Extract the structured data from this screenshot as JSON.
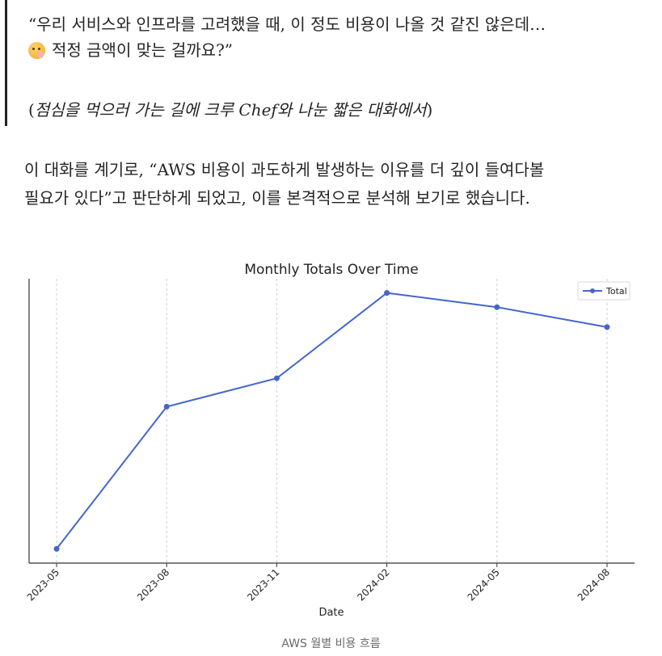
{
  "quote": {
    "line1": "“우리 서비스와 인프라를 고려했을 때, 이 정도 비용이 나올 것 같진 않은데…",
    "emoji": "thinking-face-icon",
    "line2": "적정 금액이 맞는 걸까요?”",
    "note_open": "(",
    "note_text": "점심을 먹으러 가는 길에 크루 Chef와 나눈 짧은 대화에서",
    "note_close": ")"
  },
  "paragraph": {
    "line1": "이 대화를 계기로, “AWS 비용이 과도하게 발생하는 이유를 더 깊이 들여다볼",
    "line2": "필요가 있다”고 판단하게 되었고, 이를 본격적으로 분석해 보기로 했습니다."
  },
  "chart_data": {
    "type": "line",
    "title": "Monthly Totals Over Time",
    "xlabel": "Date",
    "ylabel": "",
    "x_ticks": [
      "2023-05",
      "2023-08",
      "2023-11",
      "2024-02",
      "2024-05",
      "2024-08"
    ],
    "series": [
      {
        "name": "Total",
        "color": "#4466cc",
        "values": [
          1.0,
          6.0,
          7.0,
          10.0,
          9.5,
          8.8
        ]
      }
    ],
    "ylim": [
      0.5,
      10.5
    ],
    "grid": "vertical-dashed",
    "legend": "top-right"
  },
  "caption": "AWS 월별 비용 흐름"
}
